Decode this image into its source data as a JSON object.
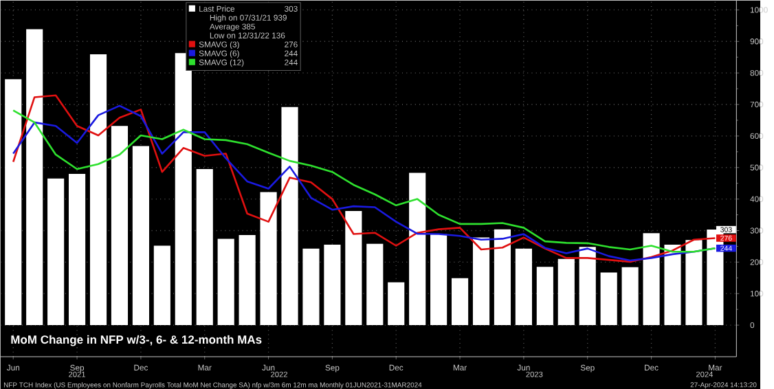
{
  "chart_data": {
    "type": "bar",
    "title": "MoM Change in NFP w/3-, 6- & 12-month MAs",
    "categories": [
      "Jun",
      null,
      null,
      "Sep",
      null,
      null,
      "Dec",
      null,
      null,
      "Mar",
      null,
      null,
      "Jun",
      null,
      null,
      "Sep",
      null,
      null,
      "Dec",
      null,
      null,
      "Mar",
      null,
      null,
      "Jun",
      null,
      null,
      "Sep",
      null,
      null,
      "Dec",
      null,
      null,
      "Mar"
    ],
    "series": [
      {
        "name": "Last Price",
        "color": "#ffffff",
        "values": [
          780,
          939,
          465,
          480,
          859,
          632,
          568,
          252,
          863,
          495,
          274,
          286,
          422,
          692,
          243,
          255,
          362,
          258,
          136,
          483,
          289,
          149,
          278,
          304,
          243,
          185,
          210,
          248,
          167,
          184,
          292,
          255,
          270,
          303
        ],
        "value_labels": [
          null,
          null,
          null,
          null,
          null,
          null,
          null,
          null,
          null,
          null,
          null,
          null,
          null,
          null,
          null,
          null,
          null,
          null,
          null,
          null,
          null,
          null,
          null,
          null,
          null,
          null,
          null,
          null,
          null,
          null,
          null,
          null,
          null,
          "303"
        ]
      },
      {
        "name": "SMAVG (3)",
        "type": "line",
        "color": "#e01010",
        "values": [
          518,
          723,
          729,
          632,
          602,
          658,
          684,
          486,
          562,
          537,
          544,
          354,
          328,
          468,
          453,
          400,
          289,
          293,
          252,
          293,
          304,
          309,
          240,
          246,
          278,
          243,
          213,
          213,
          207,
          201,
          216,
          237,
          271,
          276
        ],
        "value_labels": [
          null,
          null,
          null,
          null,
          null,
          null,
          null,
          null,
          null,
          null,
          null,
          null,
          null,
          null,
          null,
          null,
          null,
          null,
          null,
          null,
          null,
          null,
          null,
          null,
          null,
          null,
          null,
          null,
          null,
          null,
          null,
          null,
          null,
          "276"
        ]
      },
      {
        "name": "SMAVG (6)",
        "type": "line",
        "color": "#1a1ae0",
        "values": [
          544,
          643,
          632,
          578,
          666,
          696,
          663,
          544,
          612,
          612,
          529,
          456,
          433,
          503,
          404,
          366,
          377,
          374,
          328,
          290,
          289,
          283,
          271,
          274,
          289,
          245,
          228,
          243,
          219,
          205,
          213,
          225,
          233,
          244
        ],
        "value_labels": [
          null,
          null,
          null,
          null,
          null,
          null,
          null,
          null,
          null,
          null,
          null,
          null,
          null,
          null,
          null,
          null,
          null,
          null,
          null,
          null,
          null,
          null,
          null,
          null,
          null,
          null,
          null,
          null,
          null,
          null,
          null,
          null,
          null,
          "244"
        ]
      },
      {
        "name": "SMAVG (12)",
        "type": "line",
        "color": "#2ee02e",
        "values": [
          681,
          643,
          541,
          495,
          511,
          541,
          602,
          590,
          620,
          590,
          587,
          574,
          547,
          521,
          506,
          486,
          445,
          415,
          380,
          400,
          350,
          321,
          321,
          324,
          309,
          266,
          261,
          260,
          248,
          240,
          252,
          233,
          233,
          244
        ]
      }
    ],
    "ylim": [
      -100,
      1030
    ],
    "yticks": [
      0,
      100,
      200,
      300,
      400,
      500,
      600,
      700,
      800,
      900,
      1000
    ],
    "grid": true,
    "legend": "top",
    "annotations": [
      "High on 07/31/21 939",
      "Average 385",
      "Low on 12/31/22 136",
      "2021",
      "2022",
      "2023",
      "2024",
      "NFP TCH Index (US Employees on Nonfarm Payrolls Total MoM Net Change SA) nfp w/3m 6m 12m ma  Monthly 01JUN2021-31MAR2024",
      "27-Apr-2024 14:13:20",
      "244"
    ]
  }
}
